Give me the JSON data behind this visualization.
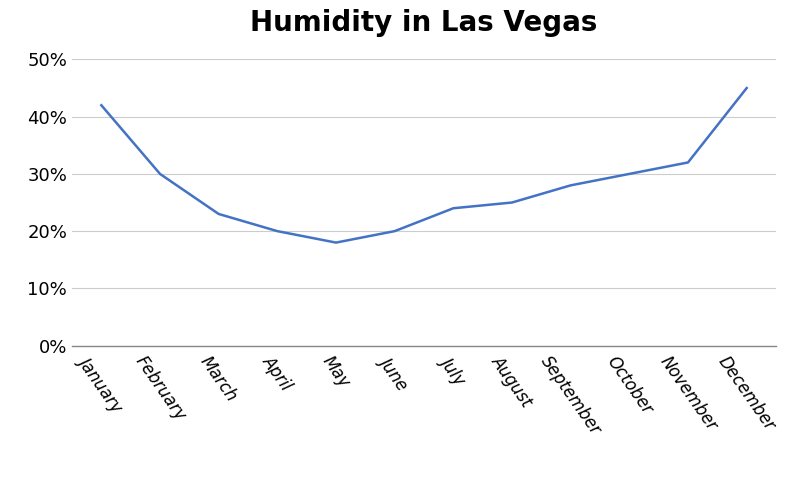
{
  "title": "Humidity in Las Vegas",
  "months": [
    "January",
    "February",
    "March",
    "April",
    "May",
    "June",
    "July",
    "August",
    "September",
    "October",
    "November",
    "December"
  ],
  "values": [
    0.42,
    0.3,
    0.23,
    0.2,
    0.18,
    0.2,
    0.24,
    0.25,
    0.28,
    0.3,
    0.32,
    0.45
  ],
  "line_color": "#4472C4",
  "line_width": 1.8,
  "ylim": [
    0,
    0.52
  ],
  "yticks": [
    0.0,
    0.1,
    0.2,
    0.3,
    0.4,
    0.5
  ],
  "background_color": "#ffffff",
  "grid_color": "#cccccc",
  "title_fontsize": 20,
  "tick_fontsize": 12,
  "ytick_fontsize": 13
}
